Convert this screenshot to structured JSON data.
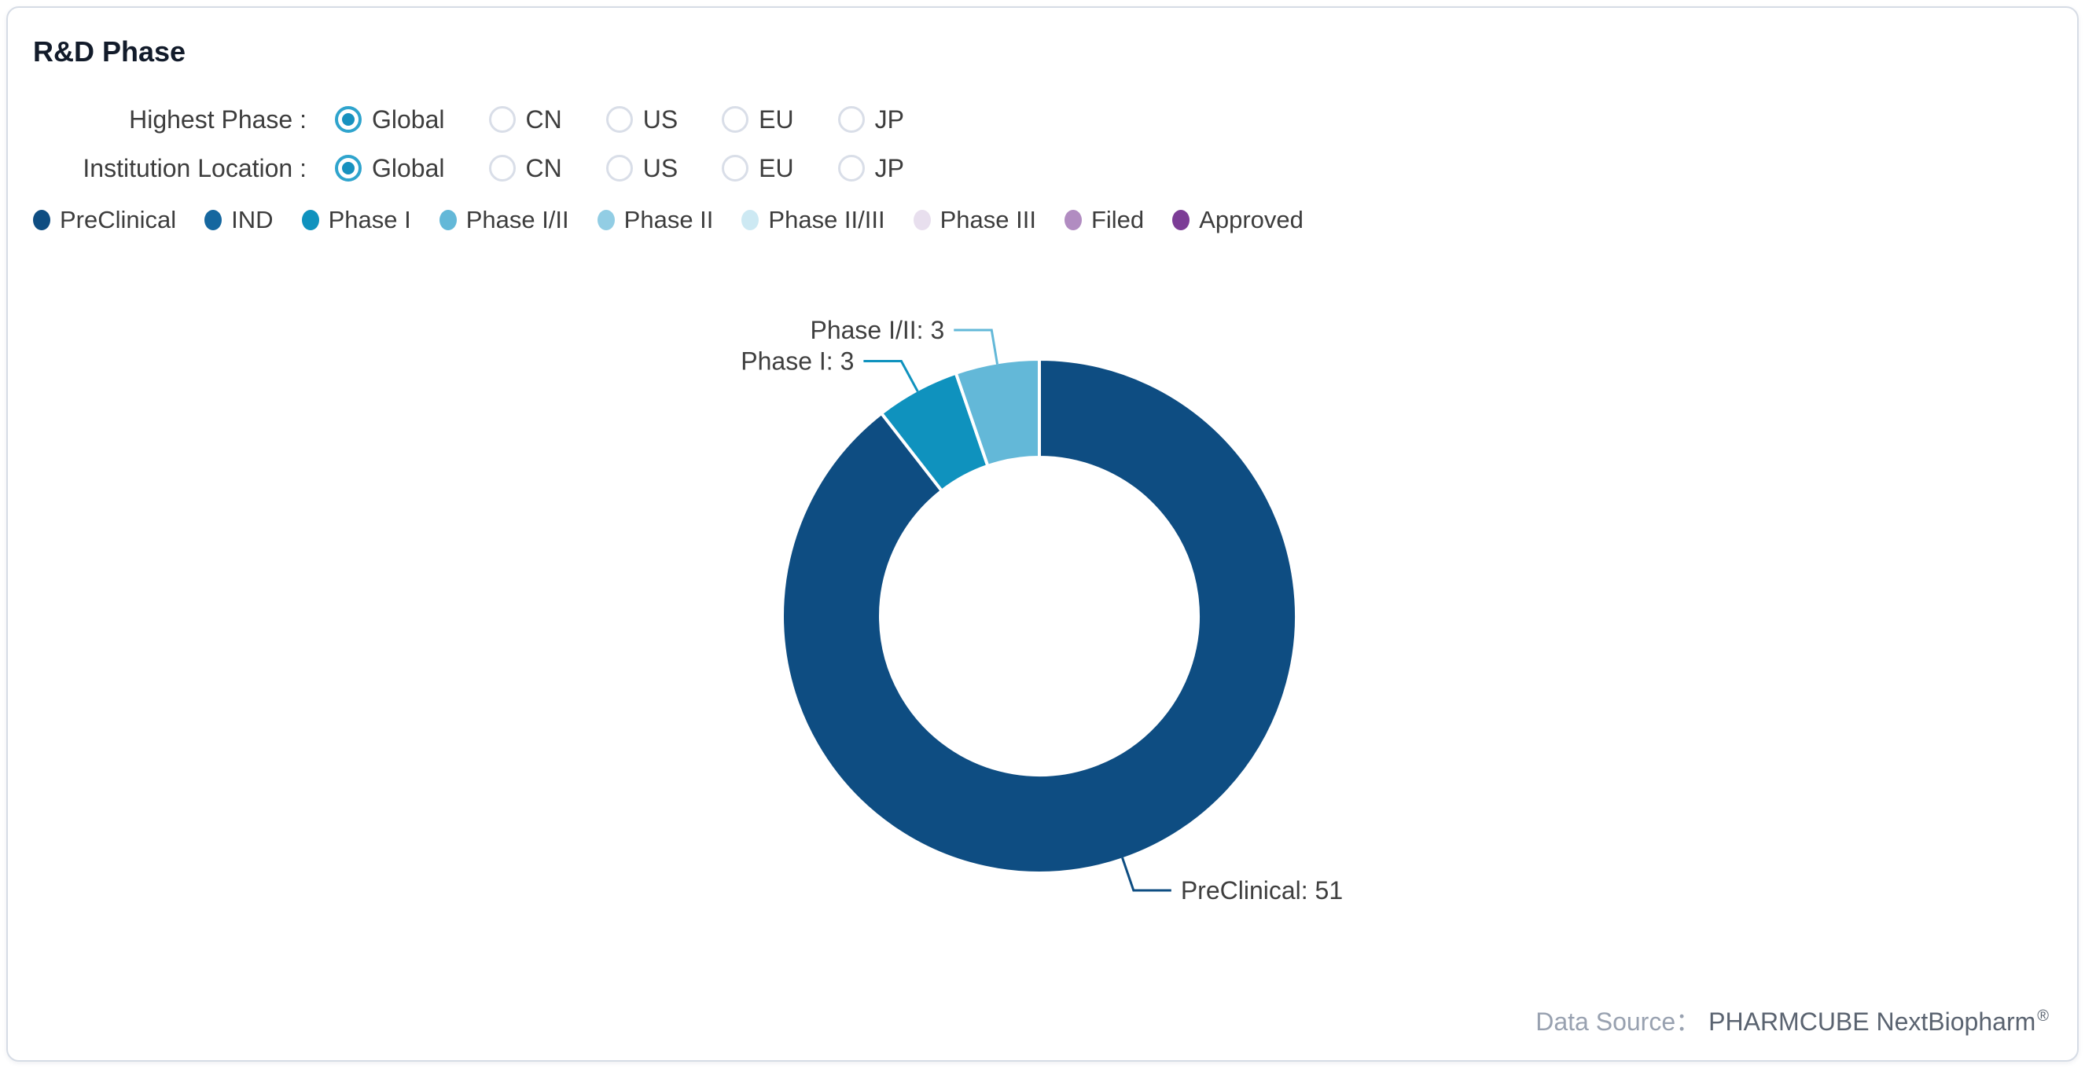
{
  "card": {
    "title": "R&D Phase",
    "data_source_label": "Data Source：",
    "data_source_value": "PHARMCUBE NextBiopharm",
    "data_source_mark": "®"
  },
  "filters": [
    {
      "id": "highest-phase",
      "label": "Highest Phase :",
      "options": [
        "Global",
        "CN",
        "US",
        "EU",
        "JP"
      ],
      "selected": "Global"
    },
    {
      "id": "institution-location",
      "label": "Institution Location :",
      "options": [
        "Global",
        "CN",
        "US",
        "EU",
        "JP"
      ],
      "selected": "Global"
    }
  ],
  "colors": {
    "radio_ring_selected": "#2FA4CD",
    "radio_dot_selected": "#1791BF",
    "radio_border_unselected": "#D9DEE8",
    "card_border": "#D6DCE5",
    "text_primary": "#3D3D3D",
    "title_text": "#121B2A",
    "source_label_text": "#98A1B0",
    "source_value_text": "#5A6370"
  },
  "chart_data": {
    "type": "pie",
    "subtype": "donut",
    "title": "R&D Phase",
    "legend_position": "top-left",
    "categories": [
      "PreClinical",
      "IND",
      "Phase I",
      "Phase I/II",
      "Phase II",
      "Phase II/III",
      "Phase III",
      "Filed",
      "Approved"
    ],
    "values": [
      51,
      0,
      3,
      3,
      0,
      0,
      0,
      0,
      0
    ],
    "colors": [
      "#0E4D82",
      "#15679F",
      "#0F92BE",
      "#63B8D8",
      "#92CDE4",
      "#CDE9F3",
      "#E8DFEE",
      "#B18CC1",
      "#7C3D96"
    ],
    "total": 57,
    "visible_labels": [
      "PreClinical: 51",
      "Phase I: 3",
      "Phase I/II: 3"
    ],
    "label_format": "{name}: {value}"
  }
}
